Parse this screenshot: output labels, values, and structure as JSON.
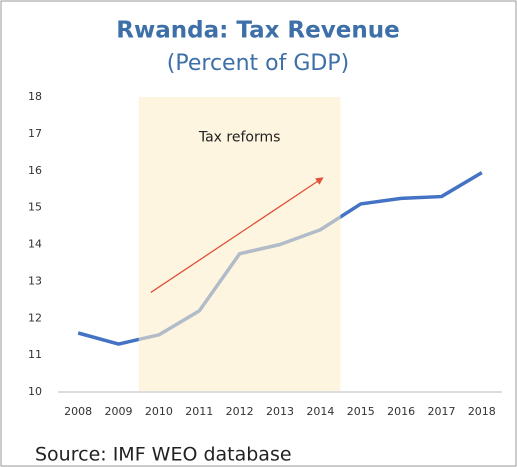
{
  "chart_data": {
    "type": "line",
    "title": "Rwanda: Tax Revenue",
    "subtitle": "(Percent of GDP)",
    "source": "Source: IMF WEO database",
    "x": [
      2008,
      2009,
      2010,
      2011,
      2012,
      2013,
      2014,
      2015,
      2016,
      2017,
      2018
    ],
    "values": [
      11.6,
      11.3,
      11.55,
      12.2,
      13.75,
      14.0,
      14.4,
      15.1,
      15.25,
      15.3,
      15.95
    ],
    "color": "#4472c4",
    "xlim": [
      2007.5,
      2018.5
    ],
    "xticks": [
      2008,
      2009,
      2010,
      2011,
      2012,
      2013,
      2014,
      2015,
      2016,
      2017,
      2018
    ],
    "ylim": [
      10,
      18
    ],
    "yticks": [
      10,
      11,
      12,
      13,
      14,
      15,
      16,
      17,
      18
    ],
    "shade": [
      2009.5,
      2014.5
    ],
    "shade_color": "#fbeecb",
    "annotation": {
      "text": "Tax reforms",
      "x": 2012,
      "y": 16.9
    },
    "arrow": {
      "from": [
        2009.8,
        12.7
      ],
      "to": [
        2014.05,
        15.8
      ],
      "color": "#e0513b"
    }
  }
}
